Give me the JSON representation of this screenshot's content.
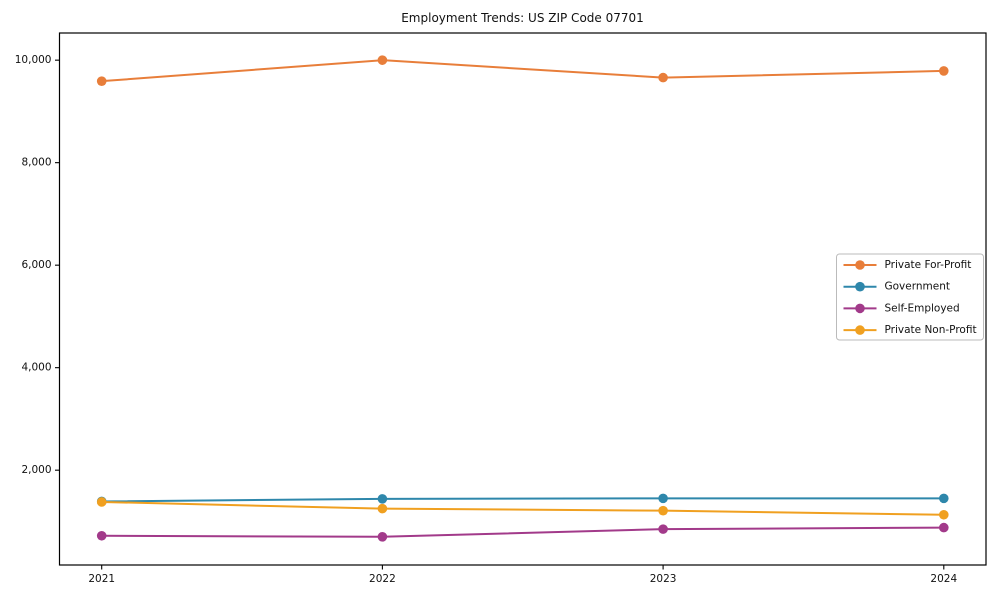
{
  "title": "Employment Trends: US ZIP Code 07701",
  "chart_data": {
    "type": "line",
    "title": "Employment Trends: US ZIP Code 07701",
    "categories": [
      "2021",
      "2022",
      "2023",
      "2024"
    ],
    "series": [
      {
        "name": "Private For-Profit",
        "color": "#e87e3a",
        "values": [
          9590,
          10000,
          9660,
          9790
        ]
      },
      {
        "name": "Government",
        "color": "#2e87ab",
        "values": [
          1390,
          1440,
          1450,
          1450
        ]
      },
      {
        "name": "Self-Employed",
        "color": "#a23a8a",
        "values": [
          720,
          700,
          850,
          880
        ]
      },
      {
        "name": "Private Non-Profit",
        "color": "#f0a020",
        "values": [
          1380,
          1250,
          1210,
          1130
        ]
      }
    ],
    "xlabel": "",
    "ylabel": "",
    "ylim": [
      150,
      10530
    ],
    "yticks": [
      2000,
      4000,
      6000,
      8000,
      10000
    ],
    "ytick_labels": [
      "2,000",
      "4,000",
      "6,000",
      "8,000",
      "10,000"
    ],
    "grid": false,
    "legend_position": "center-right",
    "frame_color": "#000000",
    "background_color": "#ffffff",
    "legend_border_color": "#bbbbbb"
  }
}
